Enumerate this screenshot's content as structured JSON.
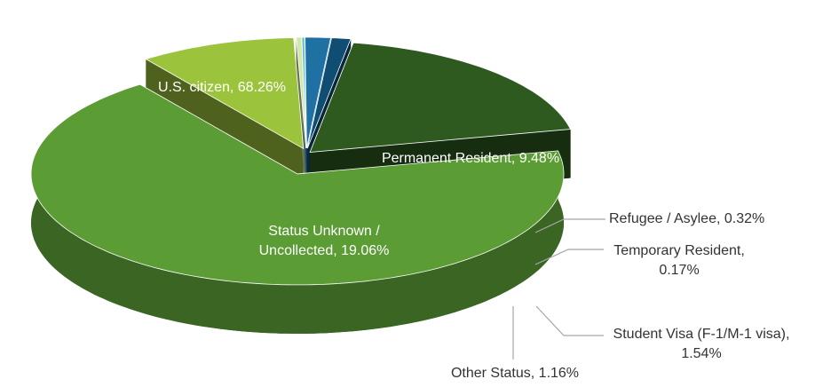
{
  "chart_data": {
    "type": "pie",
    "labels": [
      "U.S. citizen, 68.26%",
      "Permanent Resident, 9.48%",
      "Refugee / Asylee, 0.32%",
      "Temporary Resident, 0.17%",
      "Student Visa (F-1/M-1 visa), 1.54%",
      "Other Status, 1.16%",
      "Status Unknown / Uncollected, 19.06%"
    ],
    "values": [
      68.26,
      9.48,
      0.32,
      0.17,
      1.54,
      1.16,
      19.06
    ],
    "colors": [
      "#5b9c34",
      "#9bc43c",
      "#d4e8a6",
      "#5cc3e0",
      "#1f70a3",
      "#0f4e72",
      "#2e5a20"
    ]
  }
}
